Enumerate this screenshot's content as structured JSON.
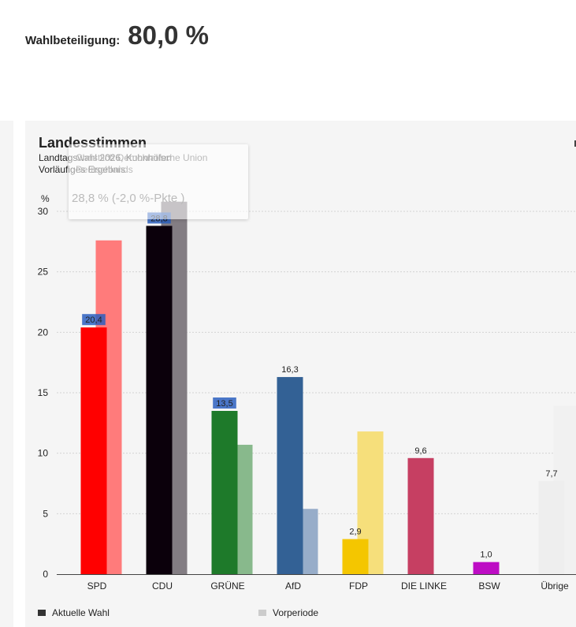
{
  "turnout": {
    "label": "Wahlbeteiligung:",
    "value": "80,0 %"
  },
  "card": {
    "title": "Landesstimmen",
    "subtitle_line1": "Landtagswahl 2026, Kuhnhöfen",
    "subtitle_line2": "Vorläufiges Ergebnis"
  },
  "tooltip": {
    "party_name": "Christlich Demokratische Union",
    "party_sub": "Deutschlands",
    "value": "28,8 % (-2,0 %-Pkte )"
  },
  "legend": {
    "current": "Aktuelle Wahl",
    "previous": "Vorperiode"
  },
  "chart_data": {
    "type": "bar",
    "title": "Landesstimmen",
    "ylabel": "%",
    "xlabel": "",
    "ylim": [
      0,
      30
    ],
    "yticks": [
      0,
      5,
      10,
      15,
      20,
      25,
      30
    ],
    "categories": [
      "SPD",
      "CDU",
      "GRÜNE",
      "AfD",
      "FDP",
      "DIE LINKE",
      "BSW",
      "Übrige"
    ],
    "series": [
      {
        "name": "Aktuelle Wahl",
        "values": [
          20.4,
          28.8,
          13.5,
          16.3,
          2.9,
          9.6,
          1.0,
          7.7
        ],
        "labels": [
          "20,4",
          "28,8",
          "13,5",
          "16,3",
          "2,9",
          "9,6",
          "1,0",
          "7,7"
        ]
      },
      {
        "name": "Vorperiode",
        "values": [
          27.6,
          30.8,
          10.7,
          5.4,
          11.8,
          null,
          null,
          13.9
        ]
      }
    ],
    "colors_current": [
      "#ff0000",
      "#0b000b",
      "#1e7a2a",
      "#336195",
      "#f4c600",
      "#c63f62",
      "#bd0dc4",
      "#eeeeee"
    ],
    "colors_previous": [
      "#ff7b7b",
      "#837d83",
      "#88b98c",
      "#97adc9",
      "#f6df7b",
      "#dd8ca0",
      "#dd88e0",
      "#f1f1f1"
    ],
    "highlighted_labels": [
      0,
      1,
      2
    ],
    "legend_position": "bottom-left"
  }
}
